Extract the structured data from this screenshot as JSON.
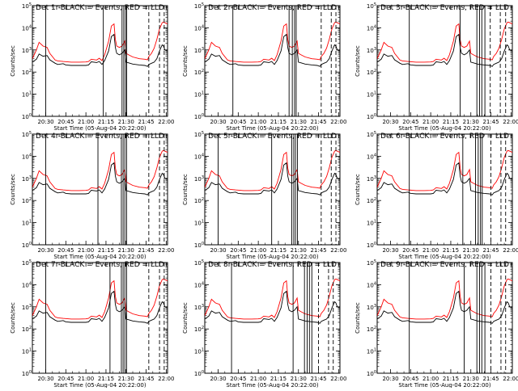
{
  "chart_data": {
    "type": "line",
    "layout": "3x3 grid",
    "y_scale": "log",
    "ylim": [
      1,
      100000
    ],
    "y_tick_labels": [
      "10^0",
      "10^1",
      "10^2",
      "10^3",
      "10^4",
      "10^5"
    ],
    "xlim_minutes": [
      1220,
      1321
    ],
    "x_tick_values": [
      1230,
      1245,
      1260,
      1275,
      1290,
      1305,
      1320
    ],
    "x_tick_labels": [
      "20:30",
      "20:45",
      "21:00",
      "21:15",
      "21:30",
      "21:45",
      "22:00"
    ],
    "xlabel": "Start Time (05-Aug-04 20:22:00)",
    "ylabel": "Counts/sec",
    "series_colors": {
      "black": "#000000",
      "red": "#ff0000"
    },
    "black_profile": [
      [
        1220,
        280
      ],
      [
        1223,
        380
      ],
      [
        1225,
        650
      ],
      [
        1228,
        520
      ],
      [
        1231,
        560
      ],
      [
        1233,
        360
      ],
      [
        1237,
        250
      ],
      [
        1239,
        220
      ],
      [
        1243,
        240
      ],
      [
        1245,
        210
      ],
      [
        1249,
        200
      ],
      [
        1255,
        200
      ],
      [
        1260,
        200
      ],
      [
        1262,
        210
      ],
      [
        1264,
        290
      ],
      [
        1268,
        270
      ],
      [
        1270,
        300
      ],
      [
        1272,
        220
      ],
      [
        1274,
        330
      ],
      [
        1277,
        900
      ],
      [
        1279,
        4000
      ],
      [
        1281,
        5000
      ],
      [
        1282,
        1300
      ],
      [
        1283,
        700
      ],
      [
        1285,
        600
      ],
      [
        1287,
        700
      ],
      [
        1289,
        1000
      ],
      [
        1290,
        280
      ],
      [
        1292,
        260
      ],
      [
        1295,
        230
      ],
      [
        1300,
        210
      ],
      [
        1304,
        200
      ],
      [
        1306,
        180
      ],
      [
        1307,
        220
      ],
      [
        1309,
        250
      ],
      [
        1311,
        280
      ],
      [
        1313,
        400
      ],
      [
        1315,
        900
      ],
      [
        1317,
        1700
      ],
      [
        1318,
        1500
      ],
      [
        1319,
        1000
      ],
      [
        1320,
        950
      ],
      [
        1321,
        900
      ]
    ],
    "red_profile": [
      [
        1220,
        400
      ],
      [
        1223,
        1000
      ],
      [
        1225,
        2200
      ],
      [
        1228,
        1500
      ],
      [
        1231,
        1300
      ],
      [
        1233,
        700
      ],
      [
        1237,
        350
      ],
      [
        1239,
        320
      ],
      [
        1243,
        300
      ],
      [
        1249,
        280
      ],
      [
        1255,
        280
      ],
      [
        1260,
        285
      ],
      [
        1262,
        300
      ],
      [
        1264,
        380
      ],
      [
        1268,
        350
      ],
      [
        1270,
        420
      ],
      [
        1272,
        330
      ],
      [
        1274,
        600
      ],
      [
        1277,
        2500
      ],
      [
        1279,
        12000
      ],
      [
        1281,
        15000
      ],
      [
        1282,
        3000
      ],
      [
        1283,
        1500
      ],
      [
        1285,
        1300
      ],
      [
        1287,
        1500
      ],
      [
        1289,
        2500
      ],
      [
        1290,
        700
      ],
      [
        1292,
        600
      ],
      [
        1295,
        480
      ],
      [
        1300,
        400
      ],
      [
        1304,
        380
      ],
      [
        1306,
        360
      ],
      [
        1307,
        500
      ],
      [
        1309,
        700
      ],
      [
        1311,
        1200
      ],
      [
        1313,
        3000
      ],
      [
        1315,
        9000
      ],
      [
        1317,
        17000
      ],
      [
        1318,
        18000
      ],
      [
        1319,
        17000
      ],
      [
        1320,
        16000
      ],
      [
        1321,
        15000
      ]
    ],
    "panels": [
      {
        "title": "Det 1r-BLACK = Events, RED = LLD",
        "black_scale": 1.0,
        "red_scale": 1.0,
        "solid_lines": [
          1230,
          1273,
          1287,
          1288.3,
          1289.6,
          1290.5
        ],
        "dashed_lines": [
          1307,
          1315,
          1318.5
        ]
      },
      {
        "title": "Det 2r-BLACK = Events, RED = LLD",
        "black_scale": 1.0,
        "red_scale": 1.0,
        "solid_lines": [
          1241,
          1283,
          1285.4,
          1287.1,
          1288.3
        ],
        "dashed_lines": [
          1307,
          1314.5,
          1318
        ]
      },
      {
        "title": "Det 3r-BLACK = Events, RED = LLD",
        "black_scale": 1.0,
        "red_scale": 1.0,
        "solid_lines": [
          1244,
          1282,
          1294.5,
          1296.5,
          1298.2,
          1300.5
        ],
        "dashed_lines": [
          1304.5,
          1312,
          1316
        ]
      },
      {
        "title": "Det 4r-BLACK = Events, RED = LLD",
        "black_scale": 1.0,
        "red_scale": 1.0,
        "solid_lines": [
          1230,
          1269,
          1286.5,
          1287.8,
          1289.1,
          1290.4
        ],
        "dashed_lines": [
          1307,
          1315,
          1318.5
        ]
      },
      {
        "title": "Det 5r-BLACK = Events, RED = LLD",
        "black_scale": 1.0,
        "red_scale": 1.0,
        "solid_lines": [
          1230,
          1270,
          1285,
          1286.5,
          1287.8,
          1289.2
        ],
        "dashed_lines": [
          1307,
          1314.5,
          1318
        ]
      },
      {
        "title": "Det 6r-BLACK = Events, RED = LLD",
        "black_scale": 1.0,
        "red_scale": 1.0,
        "solid_lines": [
          1244,
          1284,
          1293.5,
          1295.5,
          1297.2,
          1298.5
        ],
        "dashed_lines": [
          1305,
          1312.5,
          1316
        ]
      },
      {
        "title": "Det 7r-BLACK = Events, RED = LLD",
        "black_scale": 1.0,
        "red_scale": 1.0,
        "solid_lines": [
          1230,
          1278,
          1286.5,
          1287.8,
          1289.1,
          1290.4
        ],
        "dashed_lines": [
          1307,
          1315,
          1318.5
        ]
      },
      {
        "title": "Det 8r-BLACK = Events, RED = LLD",
        "black_scale": 1.0,
        "red_scale": 1.0,
        "solid_lines": [
          1240,
          1286,
          1294.5,
          1296.5,
          1298.2,
          1300
        ],
        "dashed_lines": [
          1305,
          1312.5,
          1316
        ]
      },
      {
        "title": "Det 9r-BLACK = Events, RED = LLD",
        "black_scale": 1.0,
        "red_scale": 1.0,
        "solid_lines": [
          1244,
          1285,
          1294.5,
          1296.5,
          1298.2,
          1300.5
        ],
        "dashed_lines": [
          1305,
          1312.5,
          1316
        ]
      }
    ]
  }
}
